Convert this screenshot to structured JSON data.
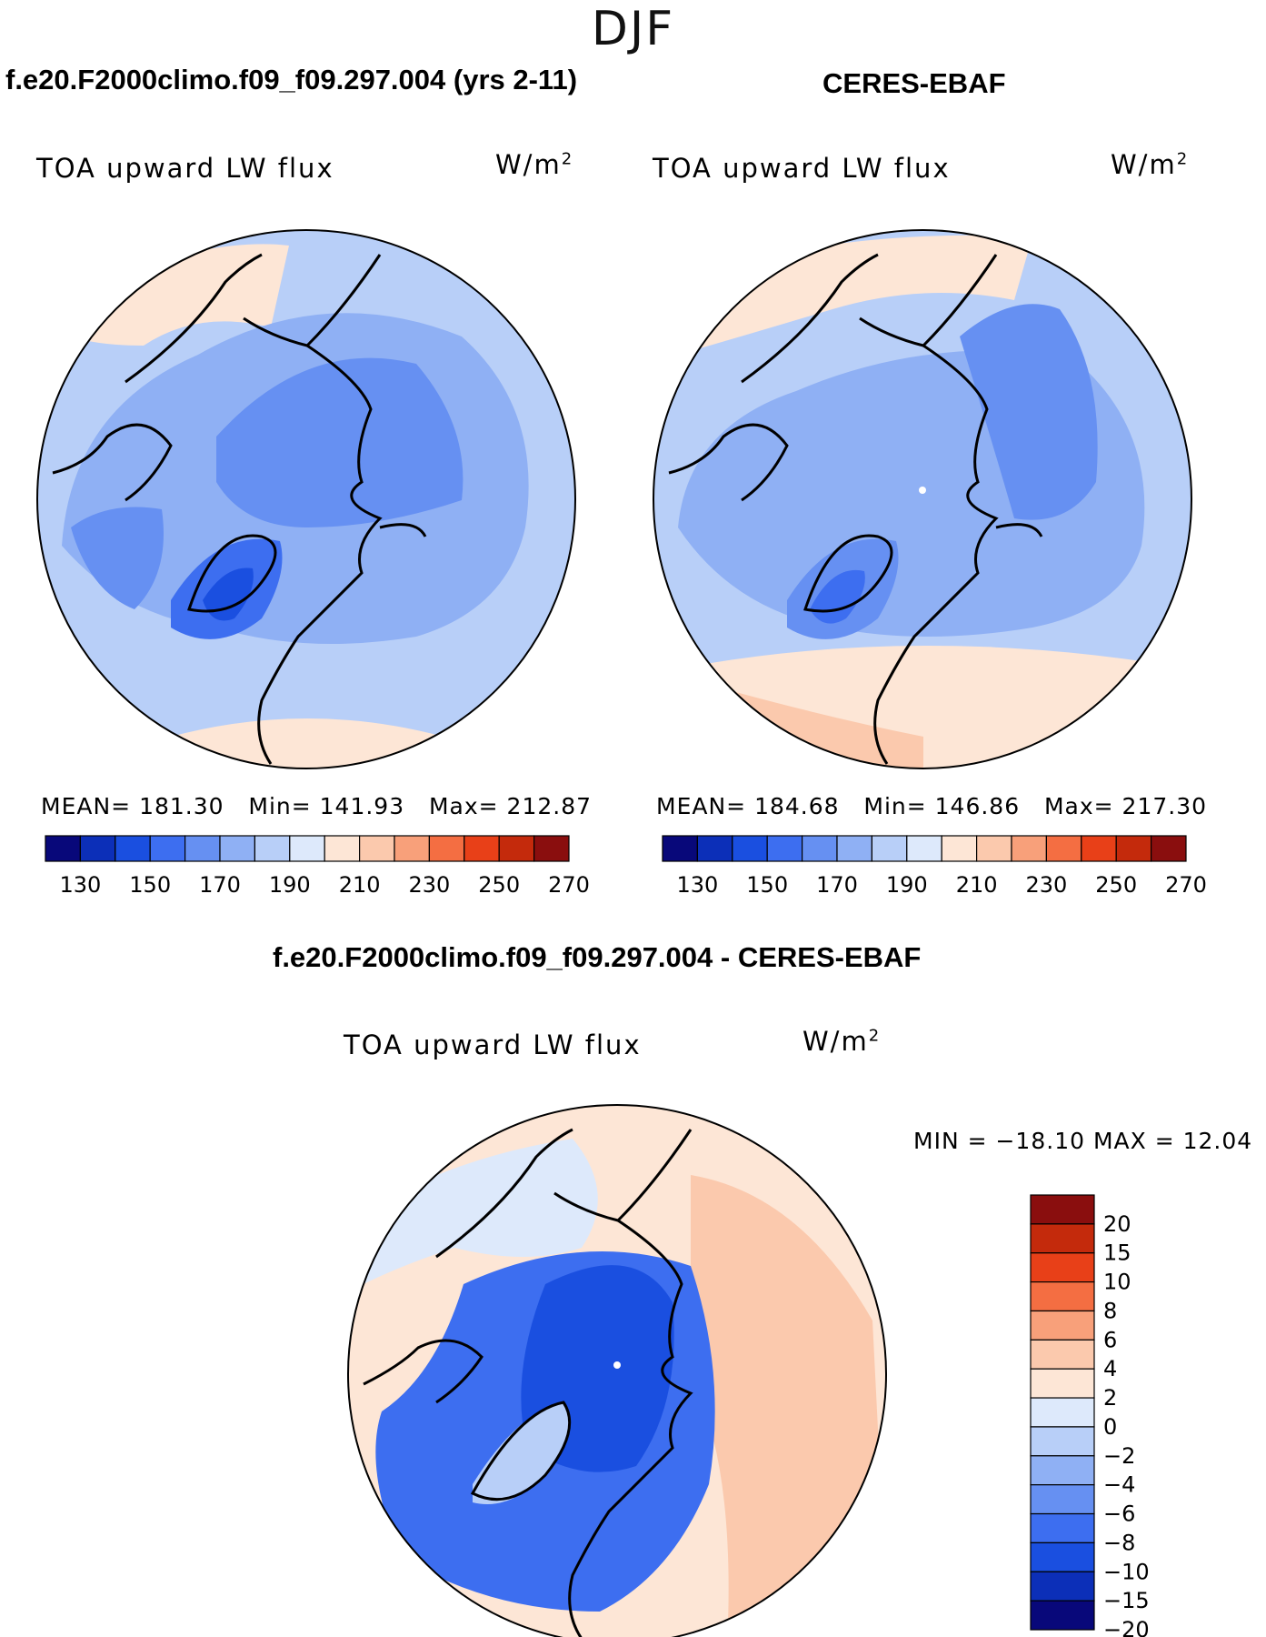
{
  "season": "DJF",
  "colors": {
    "abs_scale": [
      "#08087a",
      "#0c2fb8",
      "#1a4fe0",
      "#3d6ef0",
      "#6690f2",
      "#8fb0f4",
      "#b8cff8",
      "#dde9fb",
      "#fde6d6",
      "#fbc9ad",
      "#f8a07a",
      "#f46e42",
      "#e84018",
      "#c42a0c",
      "#8a0e0e"
    ],
    "diff_scale": [
      "#08087a",
      "#0c2fb8",
      "#1a4fe0",
      "#3d6ef0",
      "#6690f2",
      "#8fb0f4",
      "#b8cff8",
      "#dde9fb",
      "#fde6d6",
      "#fbc9ad",
      "#f8a07a",
      "#f46e42",
      "#e84018",
      "#c42a0c",
      "#8a0e0e"
    ]
  },
  "panels": {
    "model": {
      "title": "f.e20.F2000climo.f09_f09.297.004 (yrs 2-11)",
      "variable": "TOA upward LW flux",
      "units_base": "W/m",
      "units_exp": "2",
      "mean": "MEAN= 181.30",
      "min": "Min= 141.93",
      "max": "Max= 212.87",
      "colorbar_ticks": [
        "130",
        "150",
        "170",
        "190",
        "210",
        "230",
        "250",
        "270"
      ]
    },
    "obs": {
      "title": "CERES-EBAF",
      "variable": "TOA upward LW flux",
      "units_base": "W/m",
      "units_exp": "2",
      "mean": "MEAN= 184.68",
      "min": "Min= 146.86",
      "max": "Max= 217.30",
      "colorbar_ticks": [
        "130",
        "150",
        "170",
        "190",
        "210",
        "230",
        "250",
        "270"
      ]
    },
    "diff": {
      "title": "f.e20.F2000climo.f09_f09.297.004 - CERES-EBAF",
      "variable": "TOA upward LW flux",
      "units_base": "W/m",
      "units_exp": "2",
      "minmax": "MIN = −18.10 MAX =   12.04",
      "colorbar_ticks": [
        "20",
        "15",
        "10",
        "8",
        "6",
        "4",
        "2",
        "0",
        "−2",
        "−4",
        "−6",
        "−8",
        "−10",
        "−15",
        "−20"
      ]
    }
  }
}
